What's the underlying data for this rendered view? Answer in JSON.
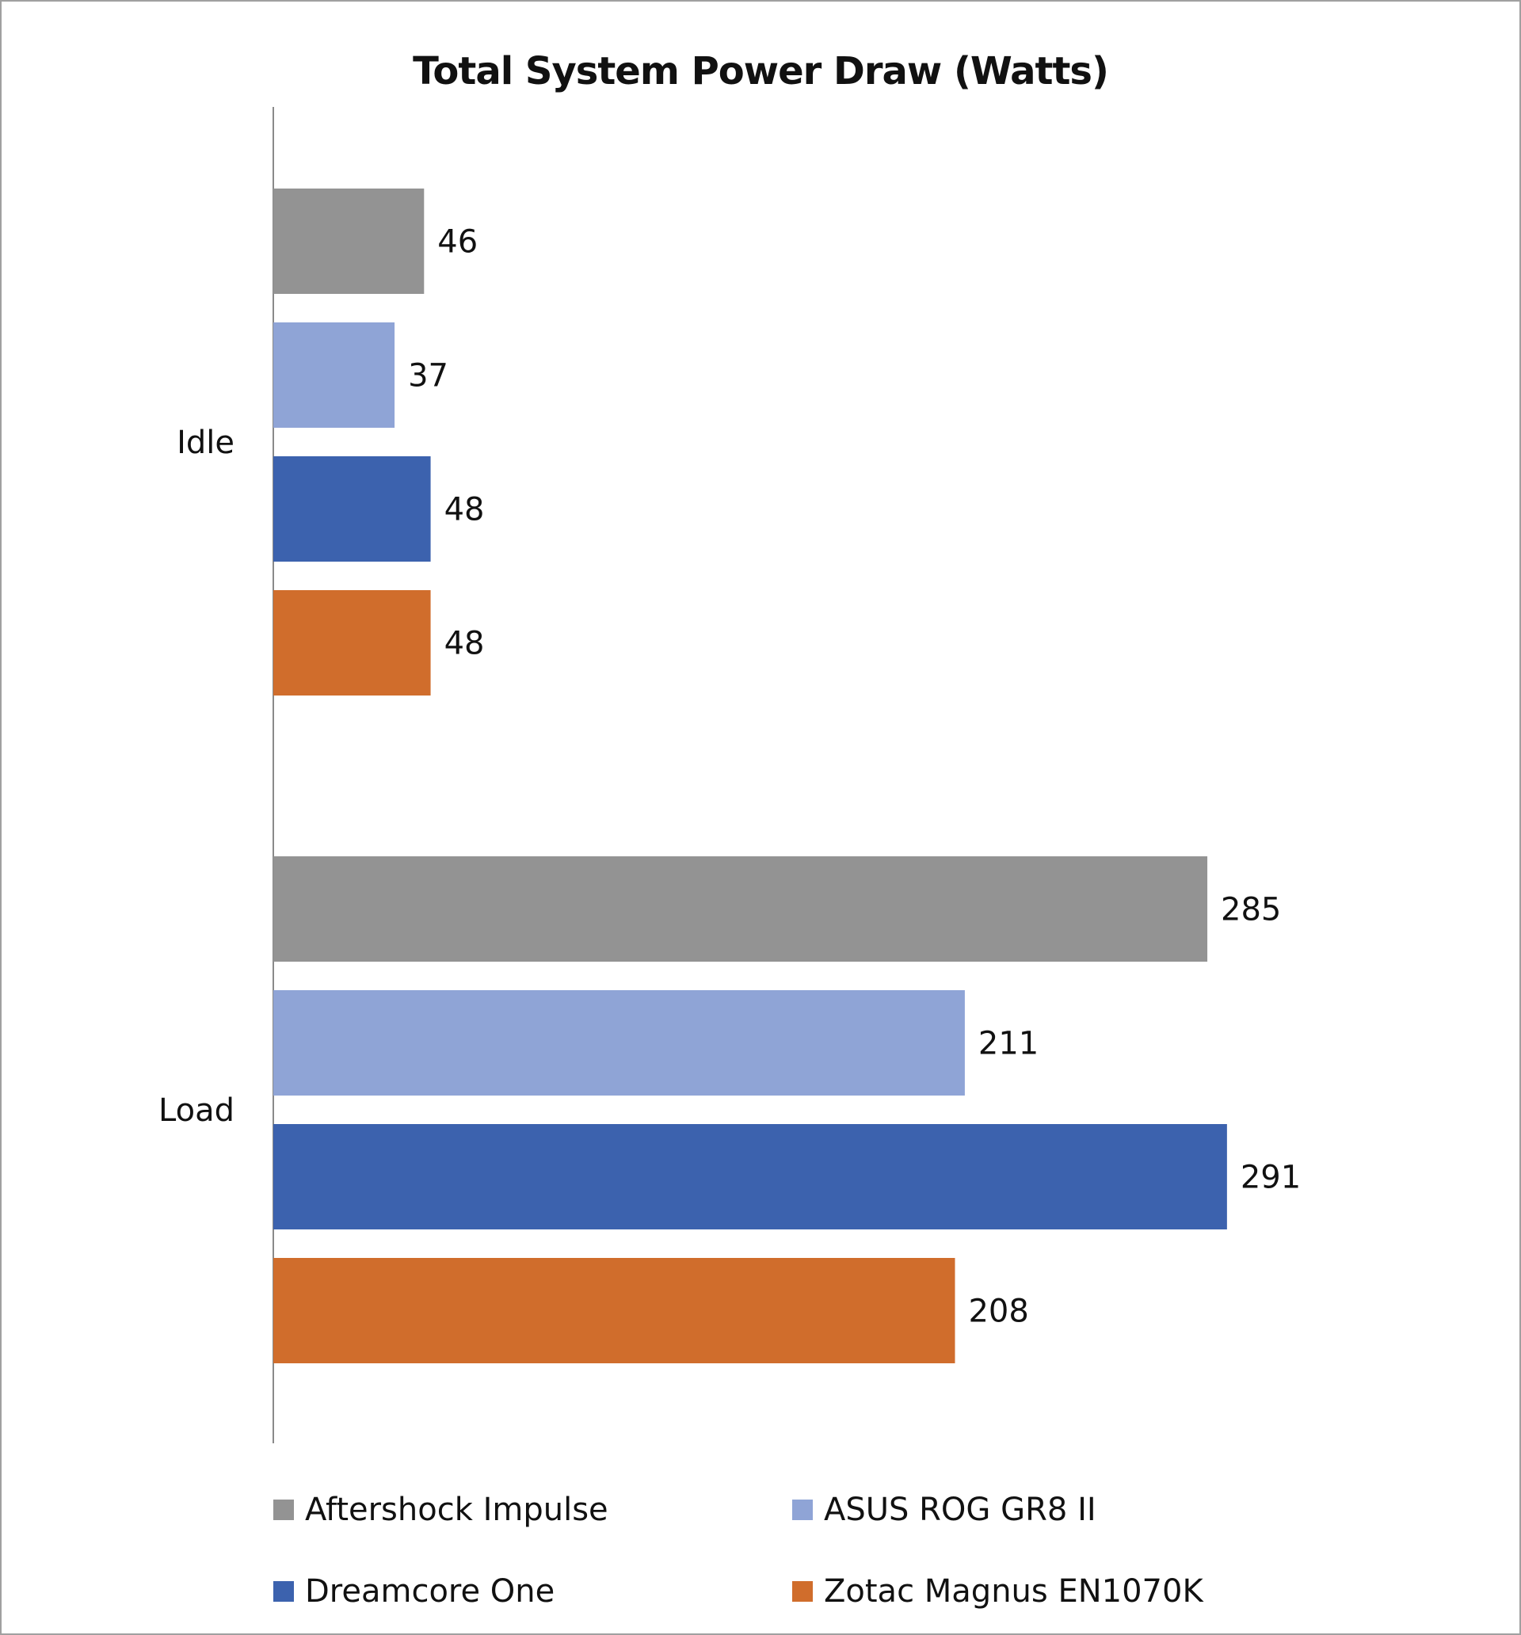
{
  "chart_data": {
    "type": "bar",
    "orientation": "horizontal",
    "title": "Total System Power Draw (Watts)",
    "categories": [
      "Idle",
      "Load"
    ],
    "series": [
      {
        "name": "Aftershock Impulse",
        "color": "#939393",
        "values": [
          46,
          285
        ]
      },
      {
        "name": "ASUS ROG GR8 II",
        "color": "#8fa4d6",
        "values": [
          37,
          211
        ]
      },
      {
        "name": "Dreamcore One",
        "color": "#3c62ae",
        "values": [
          48,
          291
        ]
      },
      {
        "name": "Zotac Magnus EN1070K",
        "color": "#d06d2c",
        "values": [
          48,
          208
        ]
      }
    ],
    "xlim": [
      0,
      300
    ],
    "grid": false,
    "legend_position": "bottom",
    "xlabel": "",
    "ylabel": ""
  }
}
